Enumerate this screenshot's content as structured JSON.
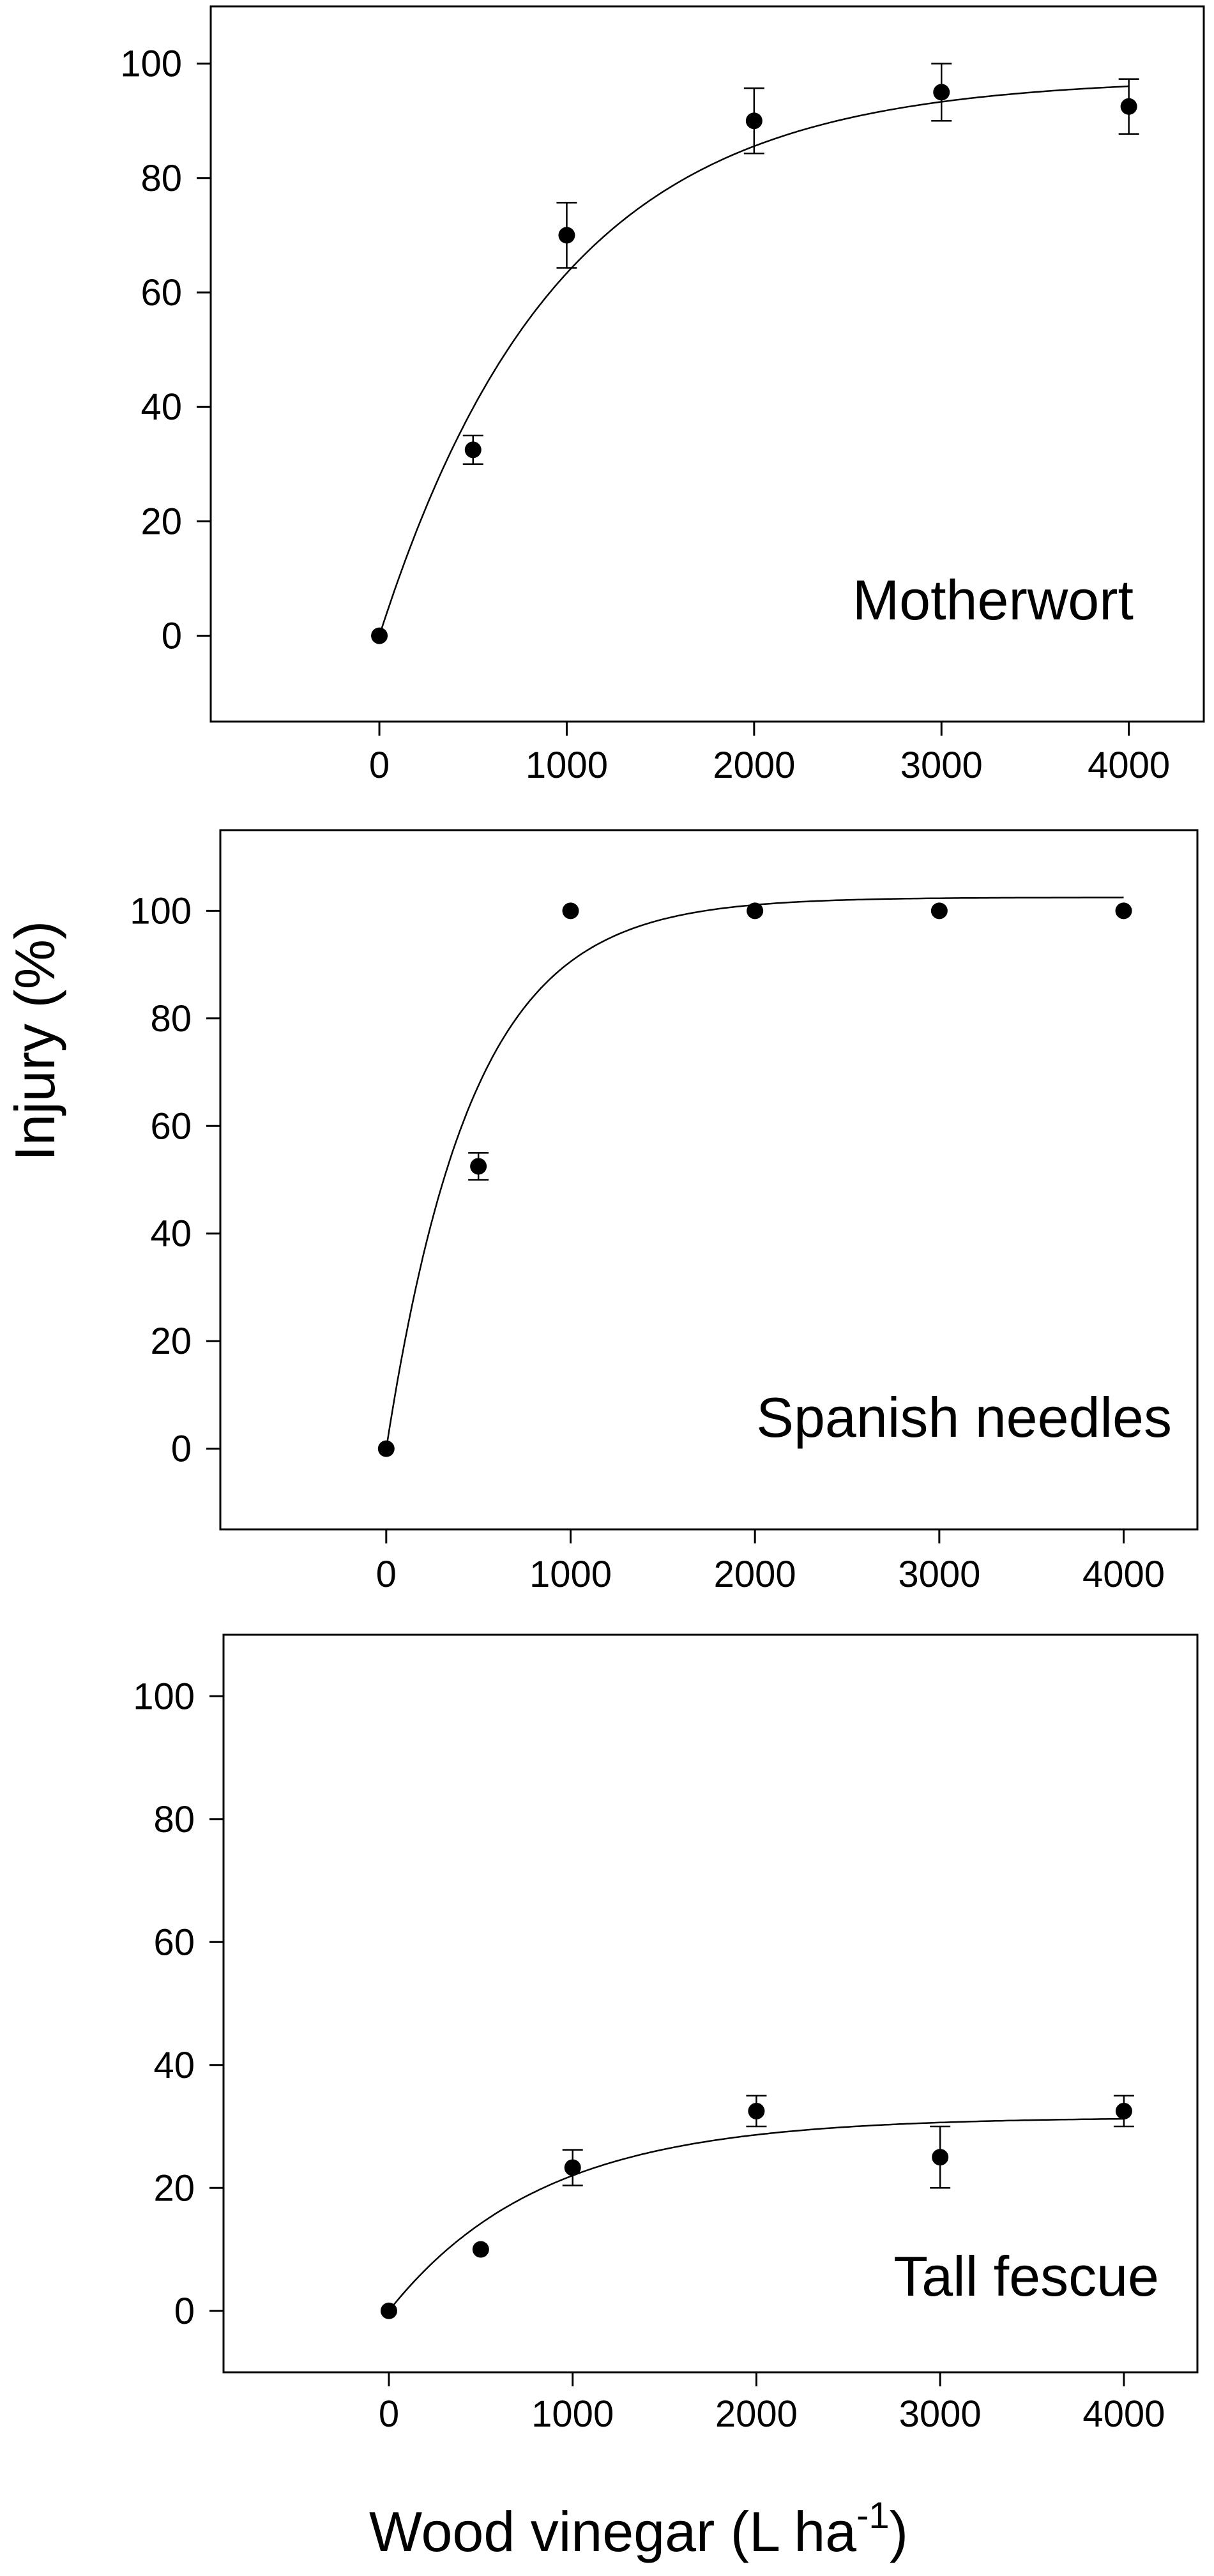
{
  "figure": {
    "ylabel": "Injury (%)",
    "xlabel_main": "Wood vinegar (L ha",
    "xlabel_sup": "-1",
    "xlabel_end": ")"
  },
  "chart_data": [
    {
      "type": "scatter",
      "title": "Motherwort",
      "xlabel": "",
      "ylabel": "",
      "xlim": [
        -900,
        4400
      ],
      "ylim": [
        -15,
        110
      ],
      "xticks": [
        0,
        1000,
        2000,
        3000,
        4000
      ],
      "yticks": [
        0,
        20,
        40,
        60,
        80,
        100
      ],
      "grid": false,
      "points": [
        {
          "x": 0,
          "y": 0,
          "err": 0
        },
        {
          "x": 500,
          "y": 32.5,
          "err": 2.5
        },
        {
          "x": 1000,
          "y": 70,
          "err": 5.7
        },
        {
          "x": 2000,
          "y": 90,
          "err": 5.7
        },
        {
          "x": 3000,
          "y": 95,
          "err": 5
        },
        {
          "x": 4000,
          "y": 92.5,
          "err": 4.8
        }
      ],
      "fit": {
        "form": "a*(1-exp(-b*x))",
        "a": 97.5,
        "b": 0.00105
      }
    },
    {
      "type": "scatter",
      "title": "Spanish needles",
      "xlabel": "",
      "ylabel": "",
      "xlim": [
        -900,
        4400
      ],
      "ylim": [
        -15,
        115
      ],
      "xticks": [
        0,
        1000,
        2000,
        3000,
        4000
      ],
      "yticks": [
        0,
        20,
        40,
        60,
        80,
        100
      ],
      "grid": false,
      "points": [
        {
          "x": 0,
          "y": 0,
          "err": 0
        },
        {
          "x": 500,
          "y": 52.5,
          "err": 2.5
        },
        {
          "x": 1000,
          "y": 100,
          "err": 0
        },
        {
          "x": 2000,
          "y": 100,
          "err": 0
        },
        {
          "x": 3000,
          "y": 100,
          "err": 0
        },
        {
          "x": 4000,
          "y": 100,
          "err": 0
        }
      ],
      "fit": {
        "form": "a*(1-exp(-b*x))",
        "a": 102.5,
        "b": 0.00215
      }
    },
    {
      "type": "scatter",
      "title": "Tall fescue",
      "xlabel": "",
      "ylabel": "",
      "xlim": [
        -900,
        4400
      ],
      "ylim": [
        -10,
        110
      ],
      "xticks": [
        0,
        1000,
        2000,
        3000,
        4000
      ],
      "yticks": [
        0,
        20,
        40,
        60,
        80,
        100
      ],
      "grid": false,
      "points": [
        {
          "x": 0,
          "y": 0,
          "err": 0
        },
        {
          "x": 500,
          "y": 10,
          "err": 0
        },
        {
          "x": 1000,
          "y": 23.3,
          "err": 2.9
        },
        {
          "x": 2000,
          "y": 32.5,
          "err": 2.5
        },
        {
          "x": 3000,
          "y": 25,
          "err": 5
        },
        {
          "x": 4000,
          "y": 32.5,
          "err": 2.5
        }
      ],
      "fit": {
        "form": "a*(1-exp(-b*x))",
        "a": 31.5,
        "b": 0.0012
      }
    }
  ]
}
